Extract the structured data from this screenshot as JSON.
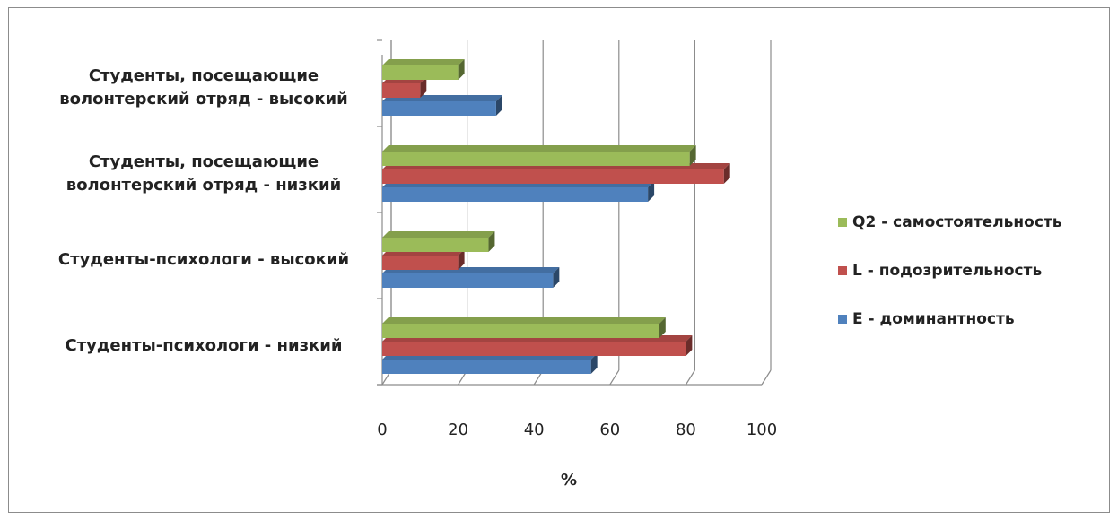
{
  "chart_data": {
    "type": "bar",
    "orientation": "horizontal",
    "style": "3d-clustered",
    "categories": [
      "Студенты-психологи - низкий",
      "Студенты-психологи - высокий",
      "Студенты, посещающие волонтерский отряд - низкий",
      "Студенты, посещающие волонтерский отряд - высокий"
    ],
    "category_lines": [
      [
        "Студенты-психологи - низкий"
      ],
      [
        "Студенты-психологи - высокий"
      ],
      [
        "Студенты, посещающие",
        "волонтерский отряд - низкий"
      ],
      [
        "Студенты, посещающие",
        "волонтерский отряд - высокий"
      ]
    ],
    "series": [
      {
        "name": "E - доминантность",
        "color": "#4f81bd",
        "values": [
          55,
          45,
          70,
          30
        ]
      },
      {
        "name": "L - подозрительность",
        "color": "#c0504d",
        "values": [
          80,
          20,
          90,
          10
        ]
      },
      {
        "name": "Q2 - самостоятельность",
        "color": "#9bbb59",
        "values": [
          73,
          28,
          81,
          20
        ]
      }
    ],
    "xlabel": "%",
    "ylabel": "",
    "xlim": [
      0,
      100
    ],
    "xticks": [
      "0",
      "20",
      "40",
      "60",
      "80",
      "100"
    ],
    "grid": true,
    "legend_position": "right"
  }
}
